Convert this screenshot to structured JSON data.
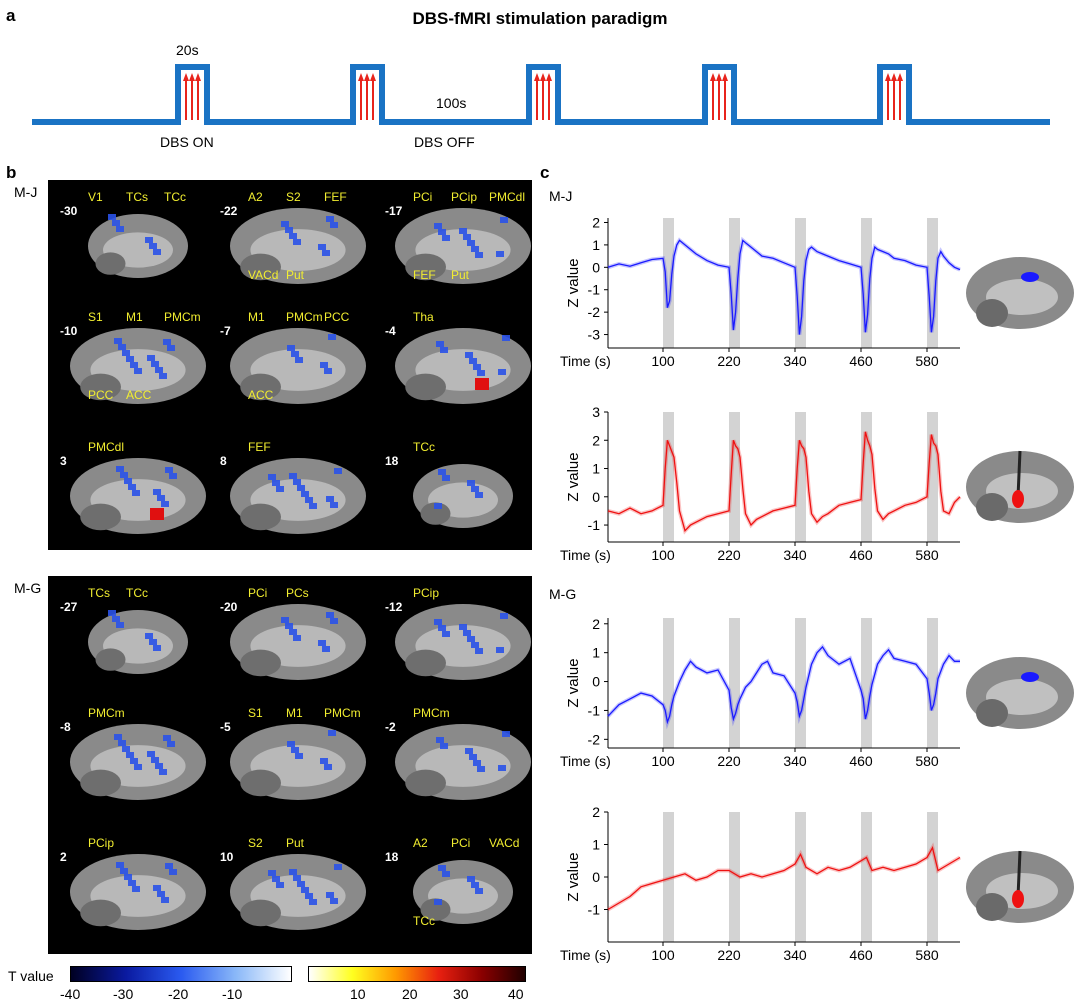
{
  "panel_a": {
    "letter": "a",
    "title": "DBS-fMRI stimulation paradigm",
    "on_duration": "20s",
    "off_duration": "100s",
    "on_label": "DBS ON",
    "off_label": "DBS OFF",
    "pulses": 5,
    "line_color": "#1a73c4",
    "arrow_color": "#e8241c"
  },
  "panel_b": {
    "letter": "b",
    "subjects": [
      {
        "name": "M-J",
        "slices": [
          {
            "label": "-30",
            "regions": [
              "V1",
              "TCs",
              "TCc"
            ]
          },
          {
            "label": "-22",
            "regions": [
              "A2",
              "S2",
              "FEF",
              "VACd",
              "Put"
            ]
          },
          {
            "label": "-17",
            "regions": [
              "PCi",
              "PCip",
              "PMCdl",
              "FEF",
              "Put"
            ]
          },
          {
            "label": "-10",
            "regions": [
              "S1",
              "M1",
              "PMCm",
              "PCC",
              "ACC"
            ]
          },
          {
            "label": "-7",
            "regions": [
              "M1",
              "PMCm",
              "PCC",
              "ACC"
            ]
          },
          {
            "label": "-4",
            "regions": [
              "Tha"
            ]
          },
          {
            "label": "3",
            "regions": [
              "PMCdl"
            ]
          },
          {
            "label": "8",
            "regions": [
              "FEF"
            ]
          },
          {
            "label": "18",
            "regions": [
              "TCc"
            ]
          }
        ]
      },
      {
        "name": "M-G",
        "slices": [
          {
            "label": "-27",
            "regions": [
              "TCs",
              "TCc"
            ]
          },
          {
            "label": "-20",
            "regions": [
              "PCi",
              "PCs"
            ]
          },
          {
            "label": "-12",
            "regions": [
              "PCip"
            ]
          },
          {
            "label": "-8",
            "regions": [
              "PMCm"
            ]
          },
          {
            "label": "-5",
            "regions": [
              "S1",
              "M1",
              "PMCm"
            ]
          },
          {
            "label": "-2",
            "regions": [
              "PMCm"
            ]
          },
          {
            "label": "2",
            "regions": [
              "PCip"
            ]
          },
          {
            "label": "10",
            "regions": [
              "S2",
              "Put"
            ]
          },
          {
            "label": "18",
            "regions": [
              "A2",
              "PCi",
              "VACd",
              "TCc"
            ]
          }
        ]
      }
    ],
    "colorbar": {
      "label": "T value",
      "ticks_negative": [
        "-40",
        "-30",
        "-20",
        "-10"
      ],
      "ticks_positive": [
        "10",
        "20",
        "30",
        "40"
      ]
    }
  },
  "panel_c": {
    "letter": "c"
  },
  "chart_data": [
    {
      "type": "line",
      "subject": "M-J",
      "ylabel": "Z value",
      "xlabel": "Time (s)",
      "xticks": [
        100,
        220,
        340,
        460,
        580
      ],
      "yticks": [
        2,
        1,
        0,
        -1,
        -2,
        -3
      ],
      "ylim": [
        -3.6,
        2.2
      ],
      "xlim": [
        0,
        640
      ],
      "color": "#1a1aff",
      "stim_blocks": [
        [
          100,
          120
        ],
        [
          220,
          240
        ],
        [
          340,
          360
        ],
        [
          460,
          480
        ],
        [
          580,
          600
        ]
      ],
      "x": [
        0,
        20,
        40,
        60,
        80,
        100,
        104,
        108,
        112,
        116,
        120,
        125,
        130,
        140,
        150,
        160,
        180,
        200,
        220,
        224,
        228,
        232,
        236,
        240,
        245,
        250,
        260,
        270,
        280,
        300,
        320,
        340,
        344,
        348,
        352,
        356,
        360,
        365,
        370,
        380,
        390,
        400,
        420,
        440,
        460,
        464,
        468,
        472,
        476,
        480,
        485,
        490,
        500,
        510,
        520,
        540,
        560,
        580,
        584,
        588,
        592,
        596,
        600,
        605,
        610,
        620,
        630,
        640
      ],
      "values": [
        0.0,
        0.15,
        0.05,
        0.2,
        0.35,
        0.4,
        -0.2,
        -1.8,
        -1.5,
        -0.3,
        0.5,
        1.0,
        1.2,
        1.0,
        0.8,
        0.6,
        0.3,
        0.1,
        0.0,
        -1.2,
        -2.8,
        -2.0,
        -0.5,
        0.6,
        1.2,
        1.1,
        0.9,
        0.7,
        0.5,
        0.4,
        0.2,
        0.0,
        -1.3,
        -3.0,
        -2.2,
        -0.6,
        0.3,
        0.8,
        0.9,
        0.7,
        0.6,
        0.5,
        0.3,
        0.15,
        0.0,
        -1.2,
        -2.9,
        -2.1,
        -0.5,
        0.4,
        0.9,
        0.8,
        0.7,
        0.6,
        0.4,
        0.3,
        0.1,
        0.0,
        -1.3,
        -2.9,
        -2.2,
        -0.6,
        0.4,
        0.7,
        0.5,
        0.2,
        0.0,
        -0.1
      ],
      "inset_marker_color": "#1a1aff"
    },
    {
      "type": "line",
      "subject": "M-J",
      "ylabel": "Z value",
      "xlabel": "Time (s)",
      "xticks": [
        100,
        220,
        340,
        460,
        580
      ],
      "yticks": [
        3,
        2,
        1,
        0,
        -1
      ],
      "ylim": [
        -1.6,
        3.0
      ],
      "xlim": [
        0,
        640
      ],
      "color": "#ee1111",
      "stim_blocks": [
        [
          100,
          120
        ],
        [
          220,
          240
        ],
        [
          340,
          360
        ],
        [
          460,
          480
        ],
        [
          580,
          600
        ]
      ],
      "x": [
        0,
        20,
        40,
        60,
        80,
        100,
        104,
        108,
        112,
        116,
        120,
        125,
        130,
        140,
        150,
        160,
        180,
        200,
        220,
        224,
        228,
        232,
        236,
        240,
        245,
        250,
        260,
        270,
        280,
        300,
        320,
        340,
        344,
        348,
        352,
        356,
        360,
        365,
        370,
        380,
        390,
        400,
        420,
        440,
        460,
        464,
        468,
        472,
        476,
        480,
        485,
        490,
        500,
        510,
        520,
        540,
        560,
        580,
        584,
        588,
        592,
        596,
        600,
        605,
        610,
        620,
        630,
        640
      ],
      "values": [
        -0.5,
        -0.6,
        -0.4,
        -0.6,
        -0.5,
        -0.3,
        1.0,
        2.0,
        1.8,
        1.6,
        1.4,
        0.5,
        -0.5,
        -1.2,
        -1.0,
        -0.9,
        -0.7,
        -0.6,
        -0.5,
        0.8,
        2.0,
        1.8,
        1.7,
        1.4,
        0.3,
        -0.6,
        -1.0,
        -0.8,
        -0.7,
        -0.5,
        -0.4,
        -0.3,
        1.0,
        2.0,
        1.8,
        1.7,
        1.4,
        0.2,
        -0.6,
        -0.9,
        -0.7,
        -0.6,
        -0.3,
        -0.2,
        -0.1,
        1.2,
        2.3,
        2.0,
        1.8,
        1.5,
        0.3,
        -0.5,
        -0.8,
        -0.6,
        -0.5,
        -0.3,
        -0.2,
        0.0,
        1.2,
        2.2,
        1.9,
        1.8,
        1.5,
        0.2,
        -0.5,
        -0.6,
        -0.2,
        0.0
      ]
    },
    {
      "type": "line",
      "subject": "M-G",
      "ylabel": "Z value",
      "xlabel": "Time (s)",
      "xticks": [
        100,
        220,
        340,
        460,
        580
      ],
      "yticks": [
        2,
        1,
        0,
        -1,
        -2
      ],
      "ylim": [
        -2.3,
        2.2
      ],
      "xlim": [
        0,
        640
      ],
      "color": "#1a1aff",
      "stim_blocks": [
        [
          100,
          120
        ],
        [
          220,
          240
        ],
        [
          340,
          360
        ],
        [
          460,
          480
        ],
        [
          580,
          600
        ]
      ],
      "x": [
        0,
        20,
        40,
        60,
        80,
        100,
        104,
        108,
        112,
        116,
        120,
        130,
        140,
        150,
        160,
        170,
        180,
        200,
        220,
        224,
        228,
        232,
        236,
        240,
        250,
        260,
        270,
        280,
        290,
        300,
        320,
        340,
        344,
        348,
        352,
        356,
        360,
        370,
        380,
        390,
        400,
        420,
        440,
        460,
        464,
        468,
        472,
        476,
        480,
        490,
        500,
        510,
        520,
        540,
        560,
        580,
        584,
        588,
        592,
        596,
        600,
        610,
        620,
        630,
        640
      ],
      "values": [
        -1.2,
        -0.8,
        -0.6,
        -0.4,
        -0.5,
        -0.8,
        -1.0,
        -1.4,
        -1.2,
        -0.8,
        -0.5,
        0.0,
        0.4,
        0.7,
        0.5,
        0.4,
        0.3,
        0.4,
        -0.3,
        -0.9,
        -1.3,
        -1.1,
        -0.8,
        -0.6,
        -0.2,
        0.0,
        0.3,
        0.6,
        0.7,
        0.3,
        0.2,
        -0.4,
        -0.7,
        -1.2,
        -1.0,
        -0.6,
        -0.2,
        0.6,
        1.0,
        1.2,
        0.9,
        0.6,
        0.8,
        -0.3,
        -0.6,
        -1.3,
        -1.0,
        -0.5,
        -0.1,
        0.6,
        0.9,
        1.1,
        0.8,
        0.7,
        0.6,
        0.1,
        -0.4,
        -1.0,
        -0.8,
        -0.4,
        0.1,
        0.6,
        0.9,
        0.7,
        0.7
      ]
    },
    {
      "type": "line",
      "subject": "M-G",
      "ylabel": "Z value",
      "xlabel": "Time (s)",
      "xticks": [
        100,
        220,
        340,
        460,
        580
      ],
      "yticks": [
        2,
        1,
        0,
        -1
      ],
      "ylim": [
        -2.0,
        2.0
      ],
      "xlim": [
        0,
        640
      ],
      "color": "#ee1111",
      "stim_blocks": [
        [
          100,
          120
        ],
        [
          220,
          240
        ],
        [
          340,
          360
        ],
        [
          460,
          480
        ],
        [
          580,
          600
        ]
      ],
      "x": [
        0,
        20,
        40,
        60,
        80,
        100,
        120,
        140,
        160,
        180,
        200,
        220,
        240,
        260,
        280,
        300,
        320,
        340,
        350,
        360,
        380,
        400,
        420,
        440,
        460,
        470,
        480,
        500,
        520,
        540,
        560,
        580,
        590,
        600,
        620,
        640
      ],
      "values": [
        -1.0,
        -0.8,
        -0.6,
        -0.3,
        -0.2,
        -0.1,
        0.0,
        0.1,
        -0.1,
        0.0,
        0.2,
        0.2,
        0.0,
        0.1,
        0.0,
        0.1,
        0.2,
        0.4,
        0.7,
        0.3,
        0.1,
        0.3,
        0.2,
        0.3,
        0.5,
        0.6,
        0.2,
        0.3,
        0.2,
        0.3,
        0.4,
        0.6,
        0.9,
        0.2,
        0.4,
        0.6
      ]
    }
  ]
}
